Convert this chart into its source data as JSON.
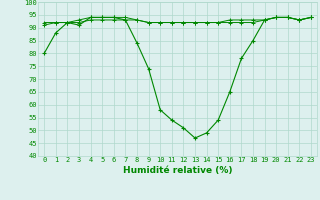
{
  "x": [
    0,
    1,
    2,
    3,
    4,
    5,
    6,
    7,
    8,
    9,
    10,
    11,
    12,
    13,
    14,
    15,
    16,
    17,
    18,
    19,
    20,
    21,
    22,
    23
  ],
  "line1": [
    80,
    88,
    92,
    91,
    94,
    94,
    94,
    93,
    84,
    74,
    58,
    54,
    51,
    47,
    49,
    54,
    65,
    78,
    85,
    93,
    94,
    94,
    93,
    94
  ],
  "line2": [
    92,
    92,
    92,
    92,
    93,
    93,
    93,
    93,
    93,
    92,
    92,
    92,
    92,
    92,
    92,
    92,
    92,
    92,
    92,
    93,
    94,
    94,
    93,
    94
  ],
  "line3": [
    91,
    92,
    92,
    93,
    94,
    94,
    94,
    94,
    93,
    92,
    92,
    92,
    92,
    92,
    92,
    92,
    93,
    93,
    93,
    93,
    94,
    94,
    93,
    94
  ],
  "bg_color": "#ddf0ee",
  "grid_color": "#b0d8cc",
  "line_color": "#008800",
  "xlabel": "Humidité relative (%)",
  "xlabel_color": "#008800",
  "ylim": [
    40,
    100
  ],
  "yticks": [
    40,
    45,
    50,
    55,
    60,
    65,
    70,
    75,
    80,
    85,
    90,
    95,
    100
  ],
  "xlim": [
    -0.5,
    23.5
  ],
  "tick_fontsize": 5.0,
  "xlabel_fontsize": 6.5
}
